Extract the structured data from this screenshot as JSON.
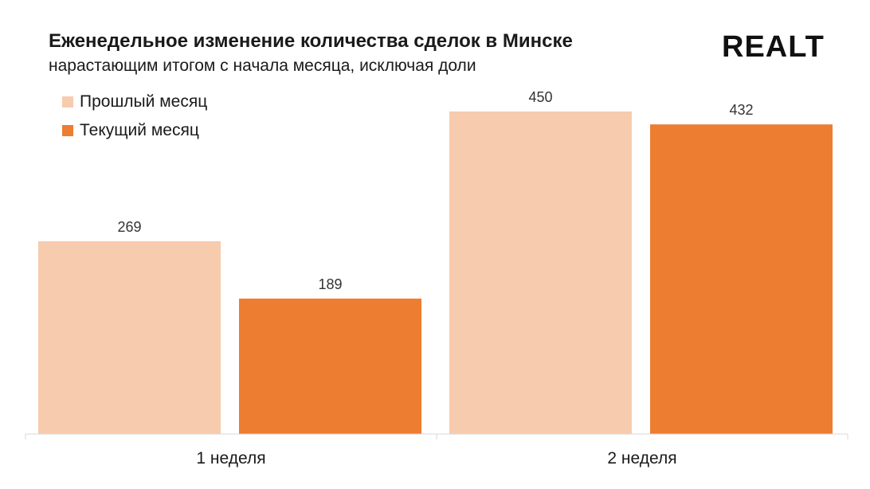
{
  "header": {
    "title": "Еженедельное изменение количества сделок в Минске",
    "subtitle": "нарастающим итогом с начала месяца, исключая доли",
    "logo": "REALT"
  },
  "colors": {
    "prev": "#f7cbad",
    "curr": "#ed7d31",
    "axis": "#d9d9d9"
  },
  "chart_data": {
    "type": "bar",
    "title": "Еженедельное изменение количества сделок в Минске",
    "subtitle": "нарастающим итогом с начала месяца, исключая доли",
    "categories": [
      "1 неделя",
      "2 неделя"
    ],
    "series": [
      {
        "name": "Прошлый месяц",
        "values": [
          269,
          450
        ]
      },
      {
        "name": "Текущий месяц",
        "values": [
          189,
          432
        ]
      }
    ],
    "xlabel": "",
    "ylabel": "",
    "ylim": [
      0,
      500
    ],
    "legend": "top-left",
    "grid": false
  }
}
